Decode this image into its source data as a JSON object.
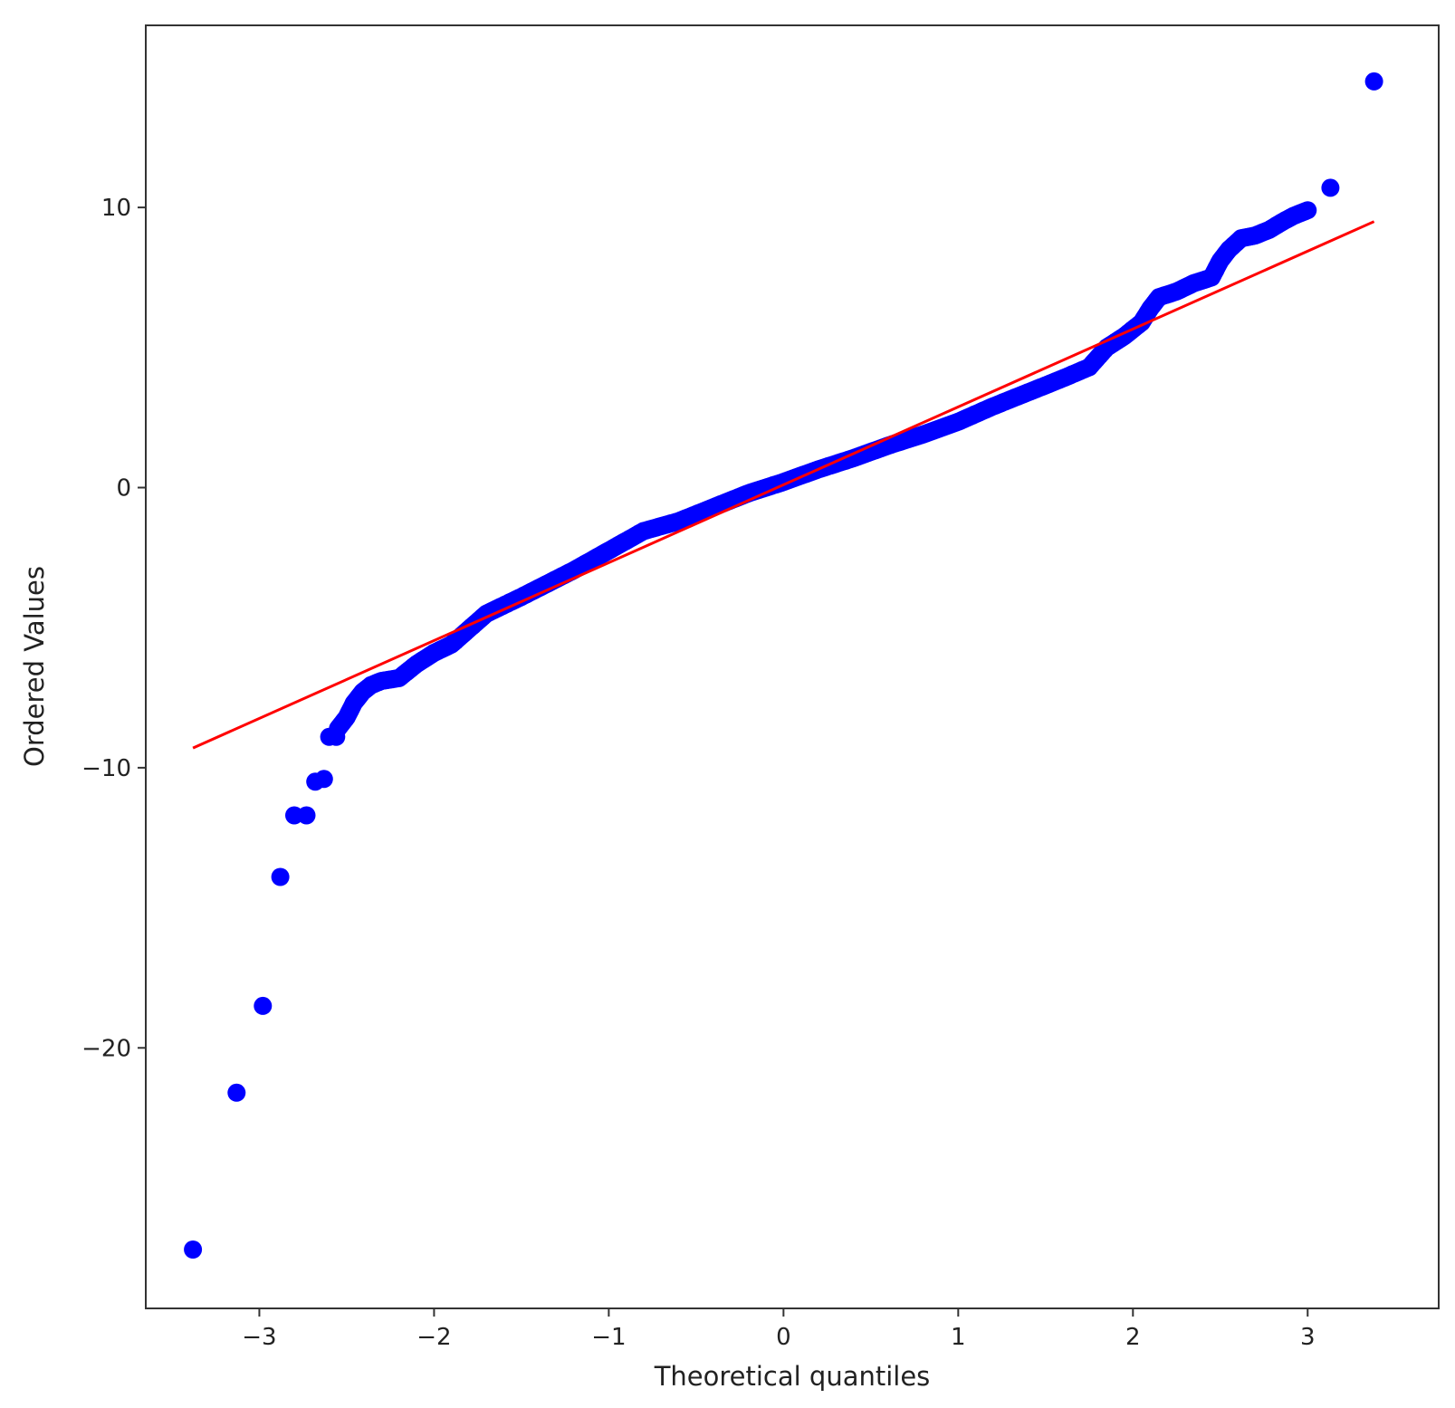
{
  "chart_data": {
    "type": "scatter",
    "title": "",
    "xlabel": "Theoretical quantiles",
    "ylabel": "Ordered Values",
    "xlim": [
      -3.65,
      3.75
    ],
    "ylim": [
      -29.3,
      16.5
    ],
    "xticks": [
      -3,
      -2,
      -1,
      0,
      1,
      2,
      3
    ],
    "yticks": [
      -20,
      -10,
      0,
      10
    ],
    "xtick_labels": [
      "−3",
      "−2",
      "−1",
      "0",
      "1",
      "2",
      "3"
    ],
    "ytick_labels": [
      "−20",
      "−10",
      "0",
      "10"
    ],
    "grid": false,
    "colors": {
      "points": "#0000ff",
      "fit_line": "#ff0000",
      "frame": "#333333"
    },
    "fit_line": {
      "slope": 2.78,
      "intercept": 0.1,
      "x_range": [
        -3.38,
        3.38
      ]
    },
    "outliers": [
      {
        "x": -3.38,
        "y": -27.2
      },
      {
        "x": -3.13,
        "y": -21.6
      },
      {
        "x": -2.98,
        "y": -18.5
      },
      {
        "x": -2.88,
        "y": -13.9
      },
      {
        "x": -2.8,
        "y": -11.7
      },
      {
        "x": -2.73,
        "y": -11.7
      },
      {
        "x": -2.68,
        "y": -10.5
      },
      {
        "x": -2.63,
        "y": -10.4
      },
      {
        "x": -2.6,
        "y": -8.9
      },
      {
        "x": -2.56,
        "y": -8.9
      },
      {
        "x": 3.13,
        "y": 10.7
      },
      {
        "x": 3.38,
        "y": 14.5
      }
    ],
    "curve": [
      {
        "x": -2.55,
        "y": -8.6
      },
      {
        "x": -2.5,
        "y": -8.2
      },
      {
        "x": -2.46,
        "y": -7.7
      },
      {
        "x": -2.41,
        "y": -7.3
      },
      {
        "x": -2.36,
        "y": -7.05
      },
      {
        "x": -2.3,
        "y": -6.9
      },
      {
        "x": -2.2,
        "y": -6.8
      },
      {
        "x": -2.1,
        "y": -6.3
      },
      {
        "x": -2.0,
        "y": -5.9
      },
      {
        "x": -1.9,
        "y": -5.6
      },
      {
        "x": -1.8,
        "y": -5.05
      },
      {
        "x": -1.7,
        "y": -4.5
      },
      {
        "x": -1.5,
        "y": -3.9
      },
      {
        "x": -1.2,
        "y": -2.95
      },
      {
        "x": -1.0,
        "y": -2.25
      },
      {
        "x": -0.8,
        "y": -1.55
      },
      {
        "x": -0.6,
        "y": -1.2
      },
      {
        "x": -0.4,
        "y": -0.7
      },
      {
        "x": -0.2,
        "y": -0.2
      },
      {
        "x": 0.0,
        "y": 0.2
      },
      {
        "x": 0.2,
        "y": 0.65
      },
      {
        "x": 0.4,
        "y": 1.05
      },
      {
        "x": 0.6,
        "y": 1.5
      },
      {
        "x": 0.8,
        "y": 1.9
      },
      {
        "x": 1.0,
        "y": 2.35
      },
      {
        "x": 1.2,
        "y": 2.9
      },
      {
        "x": 1.4,
        "y": 3.4
      },
      {
        "x": 1.6,
        "y": 3.9
      },
      {
        "x": 1.75,
        "y": 4.3
      },
      {
        "x": 1.85,
        "y": 5.0
      },
      {
        "x": 1.95,
        "y": 5.4
      },
      {
        "x": 2.05,
        "y": 5.9
      },
      {
        "x": 2.1,
        "y": 6.4
      },
      {
        "x": 2.15,
        "y": 6.8
      },
      {
        "x": 2.25,
        "y": 7.0
      },
      {
        "x": 2.35,
        "y": 7.3
      },
      {
        "x": 2.45,
        "y": 7.5
      },
      {
        "x": 2.5,
        "y": 8.1
      },
      {
        "x": 2.55,
        "y": 8.5
      },
      {
        "x": 2.62,
        "y": 8.9
      },
      {
        "x": 2.7,
        "y": 9.0
      },
      {
        "x": 2.78,
        "y": 9.2
      },
      {
        "x": 2.86,
        "y": 9.5
      },
      {
        "x": 2.92,
        "y": 9.7
      },
      {
        "x": 3.0,
        "y": 9.9
      }
    ]
  }
}
